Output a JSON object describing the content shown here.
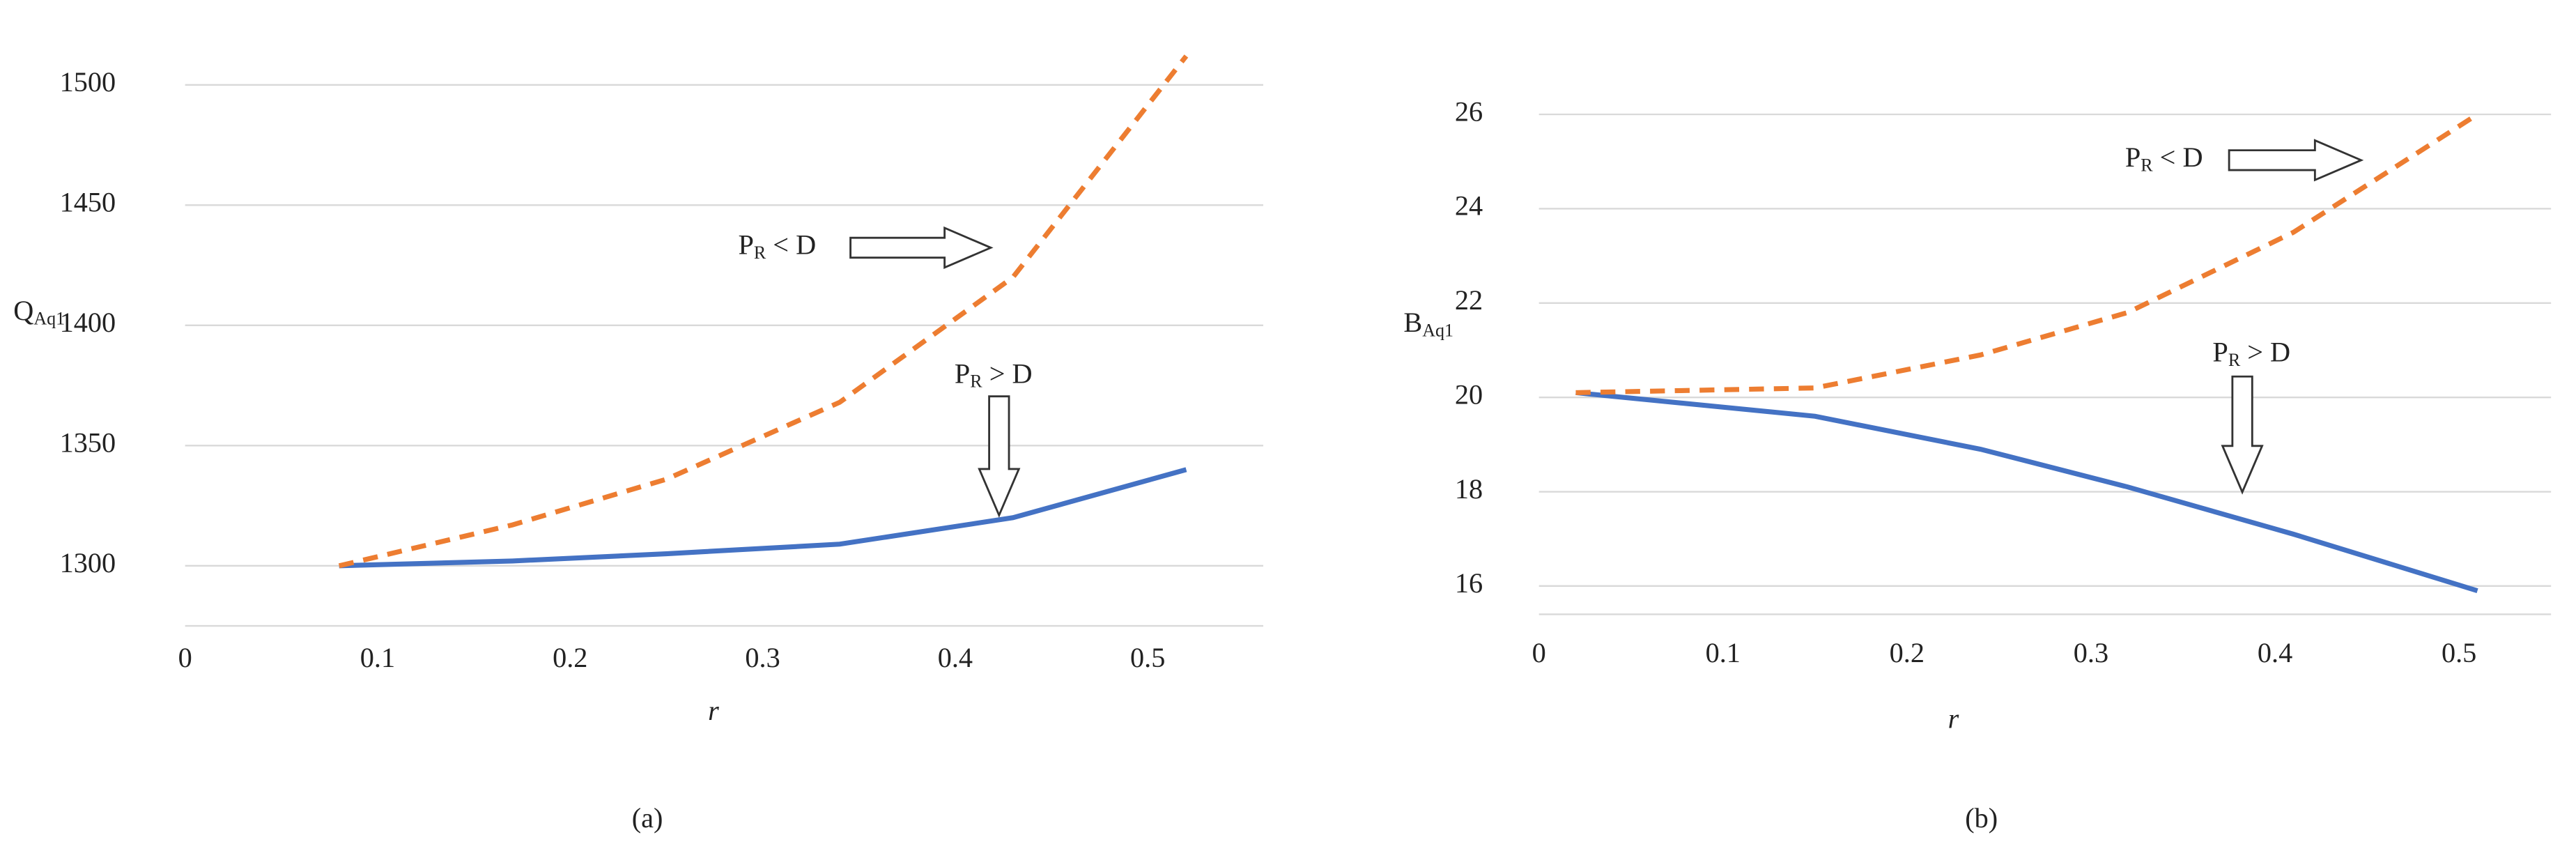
{
  "chart_data": [
    {
      "type": "line",
      "y_label": {
        "main": "Q",
        "sub": "Aq1"
      },
      "x_label": "r",
      "panel_label": "(a)",
      "x": [
        0.08,
        0.17,
        0.25,
        0.34,
        0.43,
        0.52
      ],
      "xlim": [
        0,
        0.56
      ],
      "xticks": [
        0,
        0.1,
        0.2,
        0.3,
        0.4,
        0.5
      ],
      "ylim": [
        1275,
        1525
      ],
      "yticks": [
        1300,
        1350,
        1400,
        1450,
        1500
      ],
      "grid": true,
      "series": [
        {
          "color": "#4472c4",
          "dashed": false,
          "values": [
            1300,
            1302,
            1305,
            1309,
            1320,
            1340
          ]
        },
        {
          "color": "#ed7d31",
          "dashed": true,
          "values": [
            1300,
            1317,
            1336,
            1368,
            1420,
            1512
          ]
        }
      ],
      "annotations": [
        {
          "main": "P",
          "sub": "R",
          "rest": " < D"
        },
        {
          "main": "P",
          "sub": "R",
          "rest": " > D"
        }
      ]
    },
    {
      "type": "line",
      "y_label": {
        "main": "B",
        "sub": "Aq1"
      },
      "x_label": "r",
      "panel_label": "(b)",
      "x": [
        0.02,
        0.15,
        0.24,
        0.32,
        0.41,
        0.51
      ],
      "xlim": [
        0,
        0.55
      ],
      "xticks": [
        0,
        0.1,
        0.2,
        0.3,
        0.4,
        0.5
      ],
      "ylim": [
        15.4,
        27.9
      ],
      "yticks": [
        16,
        18,
        20,
        22,
        24,
        26
      ],
      "grid": true,
      "series": [
        {
          "color": "#4472c4",
          "dashed": false,
          "values": [
            20.1,
            19.6,
            18.9,
            18.1,
            17.1,
            15.9
          ]
        },
        {
          "color": "#ed7d31",
          "dashed": true,
          "values": [
            20.1,
            20.2,
            20.9,
            21.8,
            23.5,
            26
          ]
        }
      ],
      "annotations": [
        {
          "main": "P",
          "sub": "R",
          "rest": " < D"
        },
        {
          "main": "P",
          "sub": "R",
          "rest": " > D"
        }
      ]
    }
  ]
}
